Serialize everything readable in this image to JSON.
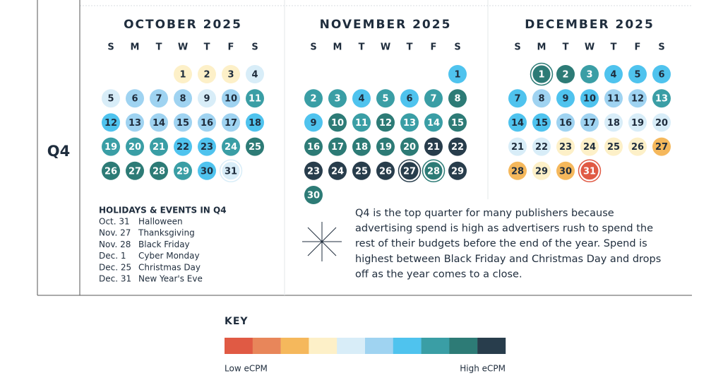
{
  "quarter": "Q4",
  "key": {
    "title": "KEY",
    "colors": [
      "#e05a44",
      "#e8865a",
      "#f5b85c",
      "#fdf0c8",
      "#d8edf8",
      "#9fd3f1",
      "#4fc3ee",
      "#3a9ea5",
      "#2d7b76",
      "#283d4c"
    ],
    "low_label": "Low eCPM",
    "high_label": "High eCPM"
  },
  "months": [
    {
      "title": "OCTOBER 2025",
      "weekdays": [
        "S",
        "M",
        "T",
        "W",
        "T",
        "F",
        "S"
      ],
      "weeks": [
        [
          null,
          null,
          null,
          {
            "day": 1,
            "level": 3
          },
          {
            "day": 2,
            "level": 3
          },
          {
            "day": 3,
            "level": 3
          },
          {
            "day": 4,
            "level": 4
          }
        ],
        [
          {
            "day": 5,
            "level": 4
          },
          {
            "day": 6,
            "level": 5
          },
          {
            "day": 7,
            "level": 5
          },
          {
            "day": 8,
            "level": 5
          },
          {
            "day": 9,
            "level": 4
          },
          {
            "day": 10,
            "level": 5
          },
          {
            "day": 11,
            "level": 7
          }
        ],
        [
          {
            "day": 12,
            "level": 6
          },
          {
            "day": 13,
            "level": 5
          },
          {
            "day": 14,
            "level": 5
          },
          {
            "day": 15,
            "level": 5
          },
          {
            "day": 16,
            "level": 5
          },
          {
            "day": 17,
            "level": 5
          },
          {
            "day": 18,
            "level": 6
          }
        ],
        [
          {
            "day": 19,
            "level": 7
          },
          {
            "day": 20,
            "level": 7
          },
          {
            "day": 21,
            "level": 7
          },
          {
            "day": 22,
            "level": 6
          },
          {
            "day": 23,
            "level": 6
          },
          {
            "day": 24,
            "level": 7
          },
          {
            "day": 25,
            "level": 8
          }
        ],
        [
          {
            "day": 26,
            "level": 8
          },
          {
            "day": 27,
            "level": 8
          },
          {
            "day": 28,
            "level": 8
          },
          {
            "day": 29,
            "level": 7
          },
          {
            "day": 30,
            "level": 6
          },
          {
            "day": 31,
            "level": 4,
            "ring": true
          },
          null
        ]
      ]
    },
    {
      "title": "NOVEMBER 2025",
      "weekdays": [
        "S",
        "M",
        "T",
        "W",
        "T",
        "F",
        "S"
      ],
      "weeks": [
        [
          null,
          null,
          null,
          null,
          null,
          null,
          {
            "day": 1,
            "level": 6
          }
        ],
        [
          {
            "day": 2,
            "level": 7
          },
          {
            "day": 3,
            "level": 7
          },
          {
            "day": 4,
            "level": 6
          },
          {
            "day": 5,
            "level": 7
          },
          {
            "day": 6,
            "level": 6
          },
          {
            "day": 7,
            "level": 7
          },
          {
            "day": 8,
            "level": 8
          }
        ],
        [
          {
            "day": 9,
            "level": 6
          },
          {
            "day": 10,
            "level": 8
          },
          {
            "day": 11,
            "level": 7
          },
          {
            "day": 12,
            "level": 8
          },
          {
            "day": 13,
            "level": 7
          },
          {
            "day": 14,
            "level": 7
          },
          {
            "day": 15,
            "level": 8
          }
        ],
        [
          {
            "day": 16,
            "level": 8
          },
          {
            "day": 17,
            "level": 8
          },
          {
            "day": 18,
            "level": 8
          },
          {
            "day": 19,
            "level": 8
          },
          {
            "day": 20,
            "level": 8
          },
          {
            "day": 21,
            "level": 9
          },
          {
            "day": 22,
            "level": 9
          }
        ],
        [
          {
            "day": 23,
            "level": 9
          },
          {
            "day": 24,
            "level": 9
          },
          {
            "day": 25,
            "level": 9
          },
          {
            "day": 26,
            "level": 9
          },
          {
            "day": 27,
            "level": 9,
            "ring": true
          },
          {
            "day": 28,
            "level": 8,
            "ring": true
          },
          {
            "day": 29,
            "level": 9
          }
        ],
        [
          {
            "day": 30,
            "level": 8
          },
          null,
          null,
          null,
          null,
          null,
          null
        ]
      ]
    },
    {
      "title": "DECEMBER 2025",
      "weekdays": [
        "S",
        "M",
        "T",
        "W",
        "T",
        "F",
        "S"
      ],
      "weeks": [
        [
          null,
          {
            "day": 1,
            "level": 8,
            "ring": true
          },
          {
            "day": 2,
            "level": 8
          },
          {
            "day": 3,
            "level": 7
          },
          {
            "day": 4,
            "level": 6
          },
          {
            "day": 5,
            "level": 6
          },
          {
            "day": 6,
            "level": 6
          }
        ],
        [
          {
            "day": 7,
            "level": 6
          },
          {
            "day": 8,
            "level": 5
          },
          {
            "day": 9,
            "level": 6
          },
          {
            "day": 10,
            "level": 6
          },
          {
            "day": 11,
            "level": 5
          },
          {
            "day": 12,
            "level": 5
          },
          {
            "day": 13,
            "level": 7
          }
        ],
        [
          {
            "day": 14,
            "level": 6
          },
          {
            "day": 15,
            "level": 6
          },
          {
            "day": 16,
            "level": 5
          },
          {
            "day": 17,
            "level": 5
          },
          {
            "day": 18,
            "level": 4
          },
          {
            "day": 19,
            "level": 4
          },
          {
            "day": 20,
            "level": 4
          }
        ],
        [
          {
            "day": 21,
            "level": 4
          },
          {
            "day": 22,
            "level": 4
          },
          {
            "day": 23,
            "level": 3
          },
          {
            "day": 24,
            "level": 3
          },
          {
            "day": 25,
            "level": 3
          },
          {
            "day": 26,
            "level": 3
          },
          {
            "day": 27,
            "level": 2
          }
        ],
        [
          {
            "day": 28,
            "level": 2
          },
          {
            "day": 29,
            "level": 3
          },
          {
            "day": 30,
            "level": 2
          },
          {
            "day": 31,
            "level": 0,
            "ring": true
          },
          null,
          null,
          null
        ]
      ]
    }
  ],
  "holidays": {
    "title": "HOLIDAYS & EVENTS IN Q4",
    "items": [
      [
        "Oct. 31",
        "Halloween"
      ],
      [
        "Nov. 27",
        "Thanksgiving"
      ],
      [
        "Nov. 28",
        "Black Friday"
      ],
      [
        "Dec. 1",
        "Cyber Monday"
      ],
      [
        "Dec. 25",
        "Christmas Day"
      ],
      [
        "Dec. 31",
        "New Year's Eve"
      ]
    ]
  },
  "description": [
    "Q4 is the top quarter for many publishers because",
    "advertising spend is high as advertisers rush to spend the",
    "rest of their budgets before the end of the year. Spend is",
    "highest between Black Friday and Christmas Day and drops",
    "off as the year comes to a close."
  ]
}
